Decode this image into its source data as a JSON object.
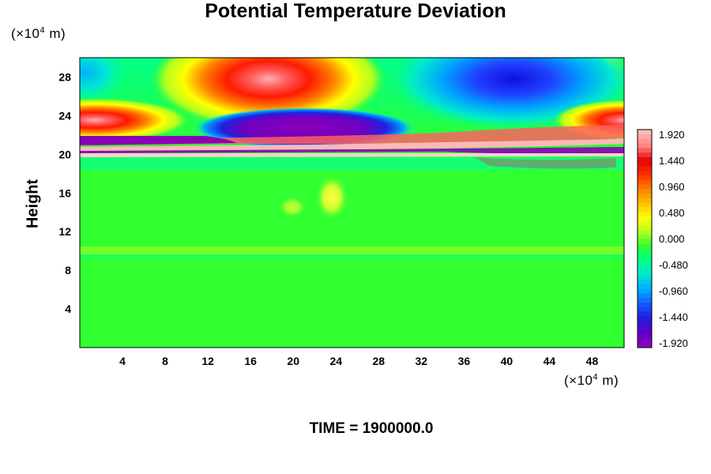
{
  "chart_data": {
    "type": "heatmap",
    "title": "Potential Temperature Deviation",
    "ylabel": "Height",
    "x_unit": "(×10",
    "x_unit_exp": "4",
    "x_unit_tail": " m)",
    "y_unit": "(×10",
    "y_unit_exp": "4",
    "y_unit_tail": " m)",
    "xlim": [
      0,
      51
    ],
    "ylim": [
      0,
      30
    ],
    "x_ticks": [
      "4",
      "8",
      "12",
      "16",
      "20",
      "24",
      "28",
      "32",
      "36",
      "40",
      "44",
      "48"
    ],
    "y_ticks": [
      "4",
      "8",
      "12",
      "16",
      "20",
      "24",
      "28"
    ],
    "colorbar": {
      "min": -1.92,
      "max": 1.92,
      "tick_labels": [
        "1.920",
        "1.440",
        "0.960",
        "0.480",
        "0.000",
        "-0.480",
        "-0.960",
        "-1.440",
        "-1.920"
      ],
      "colors": [
        "#8a00b8",
        "#5a00c8",
        "#2020e0",
        "#1060ff",
        "#00b0ff",
        "#00e8d0",
        "#00ff88",
        "#30ff30",
        "#b0ff20",
        "#ffff00",
        "#ffc000",
        "#ff8000",
        "#ff3000",
        "#e80000",
        "#ff8080",
        "#ffb8b8"
      ]
    },
    "features": [
      {
        "kind": "warm",
        "x": 18,
        "y": 27.5,
        "amplitude": 1.6
      },
      {
        "kind": "cold",
        "x": 42,
        "y": 27.5,
        "amplitude": -1.5
      },
      {
        "kind": "cold",
        "x": 19,
        "y": 22.5,
        "amplitude": -1.9
      },
      {
        "kind": "warm",
        "x": 1,
        "y": 22.5,
        "amplitude": 1.2
      },
      {
        "kind": "warm",
        "x": 50,
        "y": 22.5,
        "amplitude": 1.2
      },
      {
        "kind": "cold",
        "x": 1,
        "y": 28.5,
        "amplitude": -0.7
      },
      {
        "kind": "band",
        "y": 20.5,
        "amplitude": 1.9
      }
    ]
  },
  "footer": {
    "time_label": "TIME = 1900000.0"
  }
}
